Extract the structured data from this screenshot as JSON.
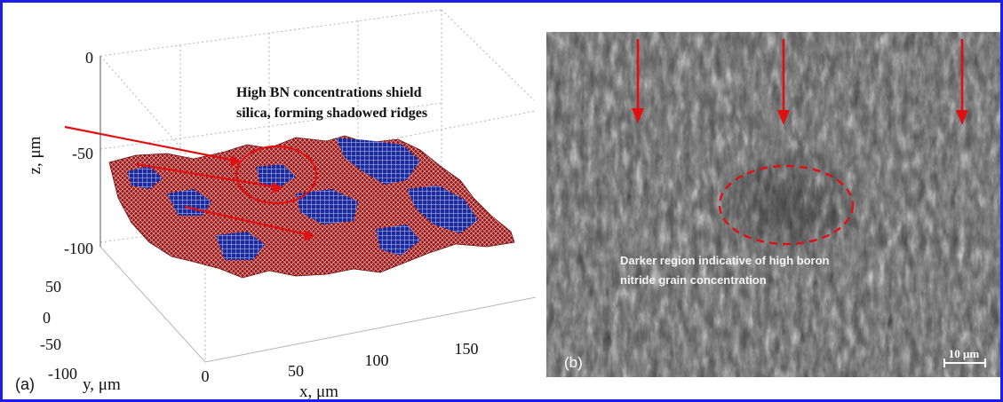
{
  "figure": {
    "border_color": "#1a1ee8",
    "panel_a": {
      "label": "(a)",
      "annotation_line1": "High BN concentrations shield",
      "annotation_line2": "silica, forming shadowed ridges",
      "surface_colors": {
        "high_bn": "#a01818",
        "silica": "#1c2aa0"
      },
      "highlight_color": "#e01010"
    },
    "panel_b": {
      "label": "(b)",
      "annotation_line1": "Darker region indicative of high boron",
      "annotation_line2": "nitride grain concentration",
      "scale_bar_label": "10 μm",
      "arrow_count": 3,
      "highlight_color": "#e01010"
    }
  },
  "chart_data": {
    "type": "surface",
    "title": "",
    "xlabel": "x, μm",
    "ylabel": "y, μm",
    "zlabel": "z, μm",
    "x_ticks": [
      "0",
      "50",
      "100",
      "150"
    ],
    "y_ticks": [
      "50",
      "0",
      "-50",
      "-100"
    ],
    "z_ticks": [
      "0",
      "-50",
      "-100"
    ],
    "xlim": [
      0,
      190
    ],
    "ylim": [
      -100,
      80
    ],
    "zlim": [
      -110,
      0
    ],
    "grid": true,
    "series": [
      {
        "name": "",
        "color": "#a01818"
      },
      {
        "name": "",
        "color": "#1c2aa0"
      }
    ]
  }
}
